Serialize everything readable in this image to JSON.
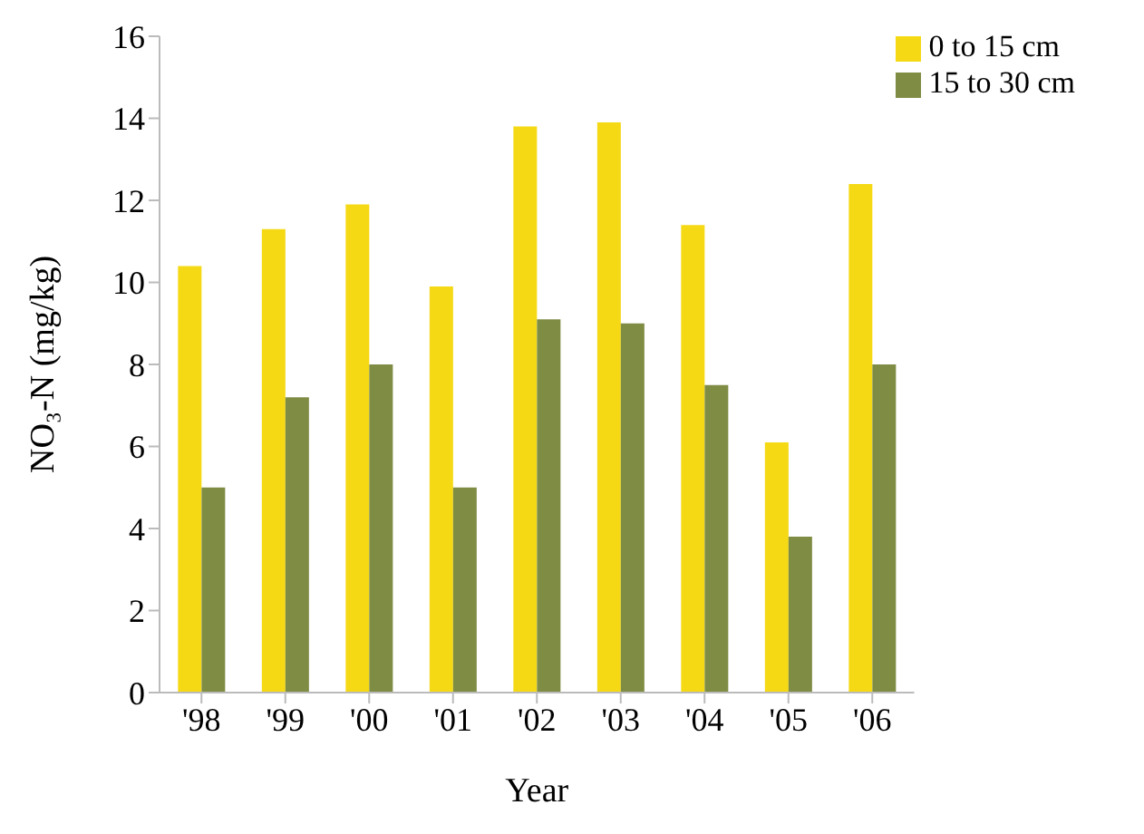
{
  "chart_data": {
    "type": "bar",
    "xlabel": "Year",
    "ylabel": "NO₃-N (mg/kg)",
    "categories": [
      "'98",
      "'99",
      "'00",
      "'01",
      "'02",
      "'03",
      "'04",
      "'05",
      "'06"
    ],
    "series": [
      {
        "name": "0 to 15 cm",
        "color": "#f5d915",
        "values": [
          10.4,
          11.3,
          11.9,
          9.9,
          13.8,
          13.9,
          11.4,
          6.1,
          12.4
        ]
      },
      {
        "name": "15 to 30 cm",
        "color": "#7f8c44",
        "values": [
          5.0,
          7.2,
          8.0,
          5.0,
          9.1,
          9.0,
          7.5,
          3.8,
          8.0
        ]
      }
    ],
    "ylim": [
      0,
      16
    ],
    "yticks": [
      0,
      2,
      4,
      6,
      8,
      10,
      12,
      14,
      16
    ],
    "grid": false,
    "legend": "top right"
  }
}
